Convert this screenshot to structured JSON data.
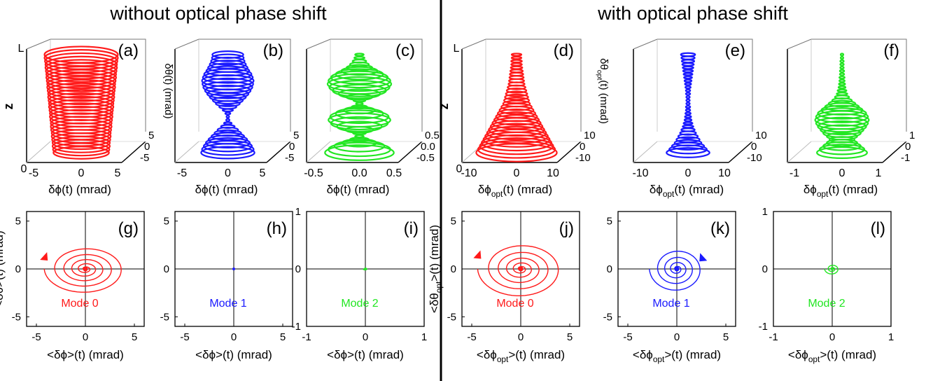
{
  "headers": {
    "left": "without optical phase shift",
    "right": "with optical phase shift"
  },
  "colors": {
    "red": "#ff1a1a",
    "blue": "#1a1aff",
    "green": "#22e622"
  },
  "top_panels": [
    {
      "id": "a",
      "label": "(a)",
      "color": "red",
      "x_ticks": [
        "-5",
        "0",
        "5"
      ],
      "y_ticks": [
        "5",
        "0",
        "-5"
      ],
      "xlabel": "δϕ(t) (mrad)",
      "ylabel": "δθ(t) (mrad)",
      "z_label": "z",
      "z_top": "L",
      "z_bottom": "0",
      "profile": [
        0.62,
        0.63,
        0.64,
        0.64,
        0.65,
        0.66,
        0.66,
        0.67,
        0.68,
        0.68,
        0.69,
        0.7,
        0.7,
        0.71,
        0.72,
        0.72,
        0.73,
        0.74,
        0.74,
        0.75,
        0.76,
        0.76,
        0.77,
        0.78,
        0.78,
        0.79,
        0.8,
        0.8,
        0.81,
        0.82,
        0.82
      ]
    },
    {
      "id": "b",
      "label": "(b)",
      "color": "blue",
      "x_ticks": [
        "-5",
        "0",
        "5"
      ],
      "y_ticks": [
        "5",
        "0",
        "-5"
      ],
      "xlabel": "δϕ(t) (mrad)",
      "ylabel": "",
      "z_label": "",
      "z_top": "",
      "z_bottom": "",
      "profile": [
        0.62,
        0.6,
        0.56,
        0.51,
        0.45,
        0.38,
        0.31,
        0.24,
        0.16,
        0.09,
        0.04,
        0.02,
        0.06,
        0.12,
        0.2,
        0.28,
        0.35,
        0.42,
        0.48,
        0.53,
        0.57,
        0.59,
        0.6,
        0.58,
        0.55,
        0.5,
        0.46,
        0.42,
        0.39,
        0.37,
        0.36
      ]
    },
    {
      "id": "c",
      "label": "(c)",
      "color": "green",
      "x_ticks": [
        "-0.5",
        "0.0",
        "0.5"
      ],
      "y_ticks": [
        "0.5",
        "0.0",
        "-0.5"
      ],
      "xlabel": "δϕ(t) (mrad)",
      "ylabel": "",
      "z_label": "",
      "z_top": "",
      "z_bottom": "",
      "profile": [
        0.8,
        0.72,
        0.58,
        0.4,
        0.22,
        0.1,
        0.15,
        0.32,
        0.52,
        0.66,
        0.72,
        0.68,
        0.55,
        0.36,
        0.18,
        0.08,
        0.14,
        0.3,
        0.48,
        0.62,
        0.7,
        0.74,
        0.72,
        0.66,
        0.55,
        0.42,
        0.3,
        0.22,
        0.16,
        0.12,
        0.1
      ]
    },
    {
      "id": "d",
      "label": "(d)",
      "color": "red",
      "x_ticks": [
        "-10",
        "0",
        "10"
      ],
      "y_ticks": [
        "10",
        "0",
        "-10"
      ],
      "xlabel": "δϕopt(t) (mrad)",
      "ylabel": "δθopt(t) (mrad)",
      "z_label": "z",
      "z_top": "L",
      "z_bottom": "0",
      "profile": [
        0.9,
        0.86,
        0.82,
        0.78,
        0.74,
        0.7,
        0.66,
        0.62,
        0.58,
        0.54,
        0.5,
        0.46,
        0.42,
        0.38,
        0.34,
        0.3,
        0.28,
        0.26,
        0.24,
        0.22,
        0.2,
        0.18,
        0.17,
        0.16,
        0.15,
        0.14,
        0.13,
        0.12,
        0.12,
        0.11,
        0.11
      ]
    },
    {
      "id": "e",
      "label": "(e)",
      "color": "blue",
      "x_ticks": [
        "-10",
        "0",
        "10"
      ],
      "y_ticks": [
        "10",
        "0",
        "-10"
      ],
      "xlabel": "δϕopt(t) (mrad)",
      "ylabel": "",
      "z_label": "",
      "z_top": "",
      "z_bottom": "",
      "profile": [
        0.48,
        0.42,
        0.36,
        0.3,
        0.26,
        0.22,
        0.18,
        0.15,
        0.12,
        0.1,
        0.08,
        0.07,
        0.06,
        0.05,
        0.05,
        0.04,
        0.04,
        0.04,
        0.05,
        0.05,
        0.06,
        0.07,
        0.08,
        0.09,
        0.1,
        0.11,
        0.12,
        0.13,
        0.14,
        0.15,
        0.16
      ]
    },
    {
      "id": "f",
      "label": "(f)",
      "color": "green",
      "x_ticks": [
        "-1",
        "0",
        "1"
      ],
      "y_ticks": [
        "1",
        "0",
        "-1"
      ],
      "xlabel": "δϕopt(t) (mrad)",
      "ylabel": "",
      "z_label": "",
      "z_top": "",
      "z_bottom": "",
      "profile": [
        0.56,
        0.5,
        0.42,
        0.34,
        0.28,
        0.34,
        0.42,
        0.48,
        0.54,
        0.58,
        0.6,
        0.58,
        0.54,
        0.46,
        0.38,
        0.3,
        0.22,
        0.16,
        0.12,
        0.1,
        0.08,
        0.07,
        0.06,
        0.06,
        0.05,
        0.05,
        0.04,
        0.04,
        0.04,
        0.03,
        0.03
      ]
    }
  ],
  "bottom_panels": [
    {
      "id": "g",
      "label": "(g)",
      "color": "red",
      "mode": "Mode 0",
      "x_ticks": [
        "-5",
        "0",
        "5"
      ],
      "y_ticks": [
        "5",
        "0",
        "-5"
      ],
      "xlabel": "<δϕ>(t) (mrad)",
      "ylabel": "<δθ>(t) (mrad)",
      "range": 6,
      "spiral": {
        "rx0": 4.2,
        "ry0": 2.6,
        "turns": 6,
        "arrow": "left"
      }
    },
    {
      "id": "h",
      "label": "(h)",
      "color": "blue",
      "mode": "Mode 1",
      "x_ticks": [
        "-5",
        "0",
        "5"
      ],
      "y_ticks": [
        "5",
        "0",
        "-5"
      ],
      "xlabel": "<δϕ>(t) (mrad)",
      "ylabel": "",
      "range": 6,
      "spiral": {
        "rx0": 0.05,
        "ry0": 0.03,
        "turns": 1,
        "arrow": "none"
      }
    },
    {
      "id": "i",
      "label": "(i)",
      "color": "green",
      "mode": "Mode 2",
      "x_ticks": [
        "-1",
        "0",
        "1"
      ],
      "y_ticks": [
        "1",
        "0",
        "-1"
      ],
      "xlabel": "<δϕ>(t) (mrad)",
      "ylabel": "",
      "range": 1,
      "spiral": {
        "rx0": 0.04,
        "ry0": 0.02,
        "turns": 2,
        "arrow": "none"
      }
    },
    {
      "id": "j",
      "label": "(j)",
      "color": "red",
      "mode": "Mode 0",
      "x_ticks": [
        "-5",
        "0",
        "5"
      ],
      "y_ticks": [
        "5",
        "0",
        "-5"
      ],
      "xlabel": "<δϕopt>(t) (mrad)",
      "ylabel": "<δθopt>(t) (mrad)",
      "range": 6,
      "spiral": {
        "rx0": 4.4,
        "ry0": 3.0,
        "turns": 6,
        "arrow": "left"
      }
    },
    {
      "id": "k",
      "label": "(k)",
      "color": "blue",
      "mode": "Mode 1",
      "x_ticks": [
        "-5",
        "0",
        "5"
      ],
      "y_ticks": [
        "5",
        "0",
        "-5"
      ],
      "xlabel": "<δϕopt>(t) (mrad)",
      "ylabel": "",
      "range": 6,
      "spiral": {
        "rx0": 2.8,
        "ry0": 2.4,
        "turns": 5,
        "arrow": "right"
      }
    },
    {
      "id": "l",
      "label": "(l)",
      "color": "green",
      "mode": "Mode 2",
      "x_ticks": [
        "-1",
        "0",
        "1"
      ],
      "y_ticks": [
        "1",
        "0",
        "-1"
      ],
      "xlabel": "<δϕopt>(t) (mrad)",
      "ylabel": "",
      "range": 1,
      "spiral": {
        "rx0": 0.13,
        "ry0": 0.1,
        "turns": 3,
        "arrow": "none"
      }
    }
  ],
  "chart_data": [
    {
      "type": "scatter",
      "panel": "(a)",
      "xlabel": "δϕ(t) (mrad)",
      "ylabel": "δθ(t) (mrad)",
      "zlabel": "z",
      "xlim": [
        -7,
        7
      ],
      "ylim": [
        -7,
        7
      ]
    },
    {
      "type": "scatter",
      "panel": "(b)",
      "xlabel": "δϕ(t) (mrad)",
      "xlim": [
        -7,
        7
      ],
      "ylim": [
        -7,
        7
      ]
    },
    {
      "type": "scatter",
      "panel": "(c)",
      "xlabel": "δϕ(t) (mrad)",
      "xlim": [
        -0.7,
        0.7
      ],
      "ylim": [
        -0.7,
        0.7
      ]
    },
    {
      "type": "scatter",
      "panel": "(d)",
      "xlabel": "δϕopt(t) (mrad)",
      "ylabel": "δθopt(t) (mrad)",
      "zlabel": "z",
      "xlim": [
        -14,
        14
      ],
      "ylim": [
        -14,
        14
      ]
    },
    {
      "type": "scatter",
      "panel": "(e)",
      "xlabel": "δϕopt(t) (mrad)",
      "xlim": [
        -14,
        14
      ],
      "ylim": [
        -14,
        14
      ]
    },
    {
      "type": "scatter",
      "panel": "(f)",
      "xlabel": "δϕopt(t) (mrad)",
      "xlim": [
        -1.4,
        1.4
      ],
      "ylim": [
        -1.4,
        1.4
      ]
    },
    {
      "type": "line",
      "panel": "(g)",
      "series": [
        {
          "name": "Mode 0",
          "color": "#ff1a1a"
        }
      ],
      "xlabel": "<δϕ>(t) (mrad)",
      "ylabel": "<δθ>(t) (mrad)",
      "xlim": [
        -6,
        6
      ],
      "ylim": [
        -6,
        6
      ]
    },
    {
      "type": "line",
      "panel": "(h)",
      "series": [
        {
          "name": "Mode 1",
          "color": "#1a1aff"
        }
      ],
      "xlabel": "<δϕ>(t) (mrad)",
      "xlim": [
        -6,
        6
      ],
      "ylim": [
        -6,
        6
      ]
    },
    {
      "type": "line",
      "panel": "(i)",
      "series": [
        {
          "name": "Mode 2",
          "color": "#22e622"
        }
      ],
      "xlabel": "<δϕ>(t) (mrad)",
      "xlim": [
        -1,
        1
      ],
      "ylim": [
        -1,
        1
      ]
    },
    {
      "type": "line",
      "panel": "(j)",
      "series": [
        {
          "name": "Mode 0",
          "color": "#ff1a1a"
        }
      ],
      "xlabel": "<δϕopt>(t) (mrad)",
      "ylabel": "<δθopt>(t) (mrad)",
      "xlim": [
        -6,
        6
      ],
      "ylim": [
        -6,
        6
      ]
    },
    {
      "type": "line",
      "panel": "(k)",
      "series": [
        {
          "name": "Mode 1",
          "color": "#1a1aff"
        }
      ],
      "xlabel": "<δϕopt>(t) (mrad)",
      "xlim": [
        -6,
        6
      ],
      "ylim": [
        -6,
        6
      ]
    },
    {
      "type": "line",
      "panel": "(l)",
      "series": [
        {
          "name": "Mode 2",
          "color": "#22e622"
        }
      ],
      "xlabel": "<δϕopt>(t) (mrad)",
      "xlim": [
        -1,
        1
      ],
      "ylim": [
        -1,
        1
      ]
    }
  ]
}
